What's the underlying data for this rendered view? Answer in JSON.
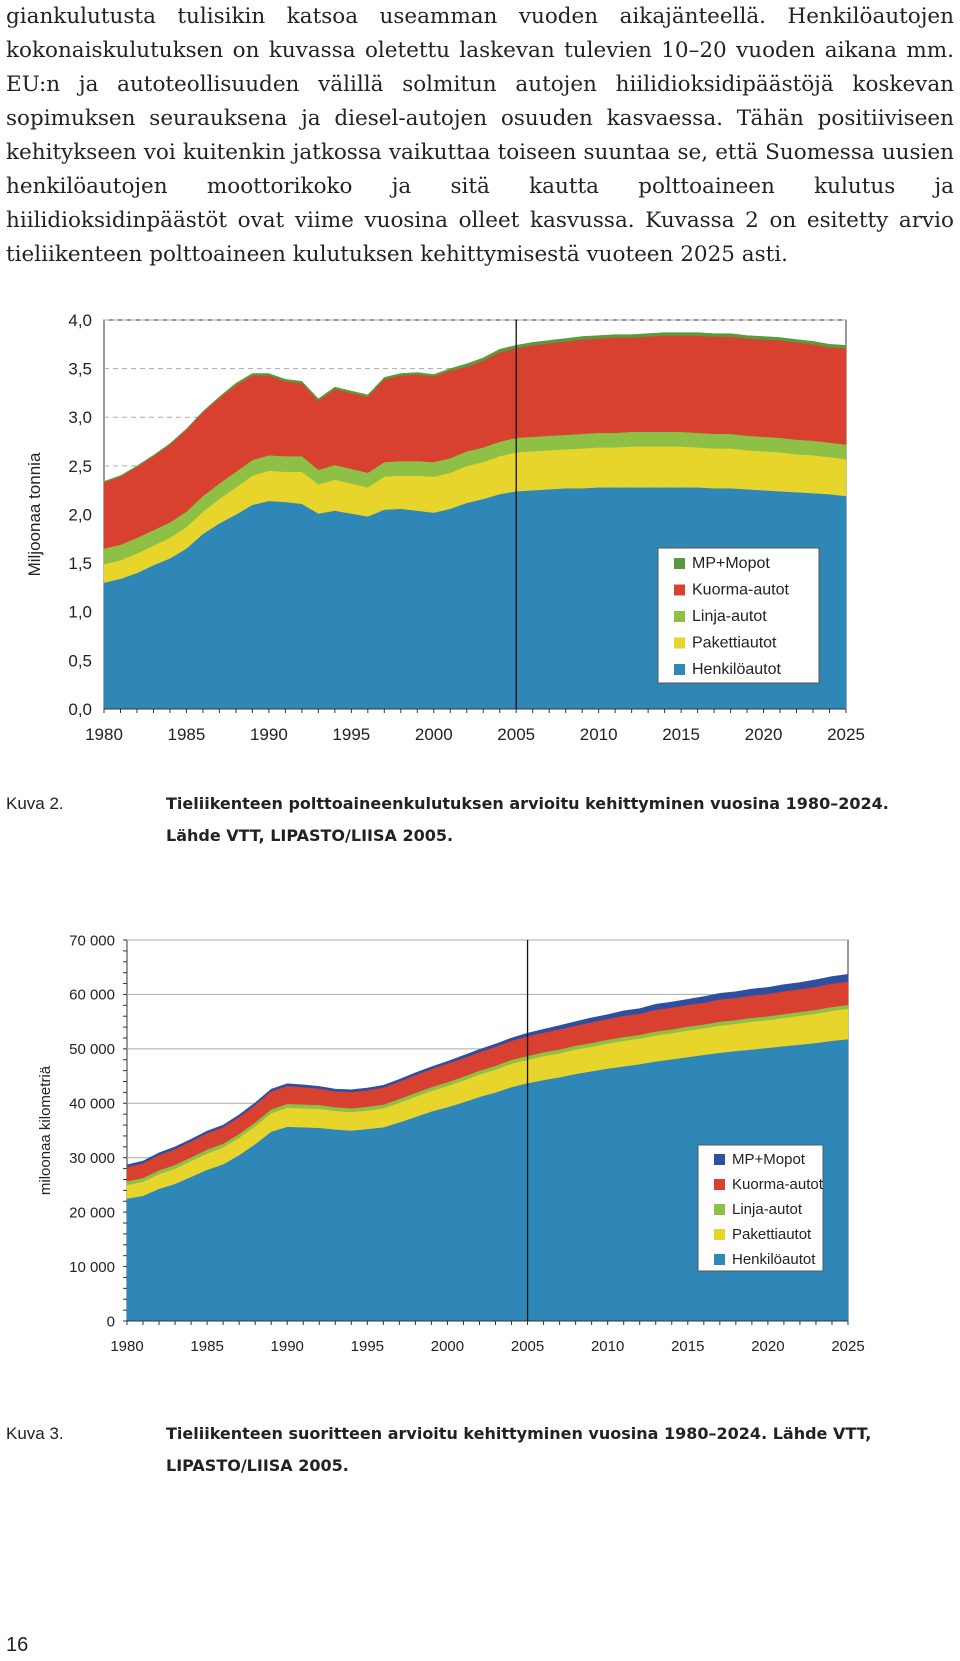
{
  "body_text": "giankulutusta tulisikin katsoa useamman vuoden aikajänteellä. Henkilöautojen kokonaiskulutuksen on kuvassa oletettu laskevan tulevien 10–20 vuoden aikana mm. EU:n ja autoteollisuuden välillä solmitun autojen hiilidioksidipäästöjä koskevan sopimuksen seurauksena ja diesel-autojen osuuden kasvaessa. Tähän positiiviseen kehitykseen voi kuitenkin jatkossa vaikuttaa toiseen suuntaa se, että Suomessa uusien henkilöautojen moottorikoko ja sitä kautta polttoaineen kulutus ja hiilidioksidinpäästöt ovat viime vuosina olleet kasvussa. Kuvassa 2 on esitetty arvio tieliikenteen polttoaineen kulutuksen kehittymisestä vuoteen 2025 asti.",
  "figure2": {
    "label": "Kuva 2.",
    "caption": "Tieliikenteen polttoaineenkulutuksen arvioitu kehittyminen vuosina 1980–2024. Lähde VTT, LIPASTO/LIISA 2005."
  },
  "figure3": {
    "label": "Kuva 3.",
    "caption": "Tieliikenteen suoritteen arvioitu kehittyminen vuosina 1980–2024. Lähde VTT, LIPASTO/LIISA 2005."
  },
  "page_number": "16",
  "colors": {
    "henkiloautot": "#2f87b8",
    "pakettiautot": "#e8d52c",
    "linja": "#8dc045",
    "kuorma": "#d8402f",
    "mp2": "#5a9a3e",
    "mp3": "#2e4fa0"
  },
  "chart_data": [
    {
      "type": "area",
      "stacked": true,
      "title": "",
      "xlabel": "",
      "ylabel": "Miljoonaa tonnia",
      "xlim": [
        1980,
        2025
      ],
      "ylim": [
        0,
        4.0
      ],
      "yticks": [
        "0,0",
        "0,5",
        "1,0",
        "1,5",
        "2,0",
        "2,5",
        "3,0",
        "3,5",
        "4,0"
      ],
      "ytick_values": [
        0,
        0.5,
        1.0,
        1.5,
        2.0,
        2.5,
        3.0,
        3.5,
        4.0
      ],
      "xticks": [
        "1980",
        "1985",
        "1990",
        "1995",
        "2000",
        "2005",
        "2010",
        "2015",
        "2020",
        "2025"
      ],
      "xtick_values": [
        1980,
        1985,
        1990,
        1995,
        2000,
        2005,
        2010,
        2015,
        2020,
        2025
      ],
      "reference_line_x": 2005,
      "legend_position": "bottom-right",
      "x": [
        1980,
        1981,
        1982,
        1983,
        1984,
        1985,
        1986,
        1987,
        1988,
        1989,
        1990,
        1991,
        1992,
        1993,
        1994,
        1995,
        1996,
        1997,
        1998,
        1999,
        2000,
        2001,
        2002,
        2003,
        2004,
        2005,
        2006,
        2007,
        2008,
        2009,
        2010,
        2011,
        2012,
        2013,
        2014,
        2015,
        2016,
        2017,
        2018,
        2019,
        2020,
        2021,
        2022,
        2023,
        2024,
        2025
      ],
      "series": [
        {
          "name": "Henkilöautot",
          "color": "#2f87b8",
          "values": [
            1.3,
            1.34,
            1.4,
            1.48,
            1.55,
            1.65,
            1.8,
            1.91,
            2.0,
            2.1,
            2.14,
            2.13,
            2.11,
            2.01,
            2.04,
            2.01,
            1.98,
            2.05,
            2.06,
            2.04,
            2.02,
            2.06,
            2.12,
            2.16,
            2.21,
            2.24,
            2.25,
            2.26,
            2.27,
            2.27,
            2.28,
            2.28,
            2.28,
            2.28,
            2.28,
            2.28,
            2.28,
            2.27,
            2.27,
            2.26,
            2.25,
            2.24,
            2.23,
            2.22,
            2.21,
            2.19
          ]
        },
        {
          "name": "Pakettiautot",
          "color": "#e8d52c",
          "values": [
            0.19,
            0.19,
            0.2,
            0.2,
            0.21,
            0.22,
            0.23,
            0.25,
            0.28,
            0.3,
            0.31,
            0.31,
            0.33,
            0.3,
            0.32,
            0.31,
            0.3,
            0.34,
            0.34,
            0.36,
            0.37,
            0.37,
            0.38,
            0.38,
            0.39,
            0.4,
            0.4,
            0.4,
            0.4,
            0.41,
            0.41,
            0.41,
            0.42,
            0.42,
            0.42,
            0.42,
            0.41,
            0.41,
            0.41,
            0.4,
            0.4,
            0.4,
            0.39,
            0.39,
            0.38,
            0.38
          ]
        },
        {
          "name": "Linja-autot",
          "color": "#8dc045",
          "values": [
            0.16,
            0.16,
            0.16,
            0.16,
            0.16,
            0.16,
            0.16,
            0.16,
            0.16,
            0.16,
            0.16,
            0.16,
            0.16,
            0.15,
            0.15,
            0.15,
            0.15,
            0.15,
            0.15,
            0.15,
            0.15,
            0.15,
            0.15,
            0.15,
            0.15,
            0.15,
            0.15,
            0.15,
            0.15,
            0.15,
            0.15,
            0.15,
            0.15,
            0.15,
            0.15,
            0.15,
            0.15,
            0.15,
            0.15,
            0.15,
            0.15,
            0.15,
            0.15,
            0.15,
            0.15,
            0.15
          ]
        },
        {
          "name": "Kuorma-autot",
          "color": "#d8402f",
          "values": [
            0.68,
            0.7,
            0.73,
            0.76,
            0.8,
            0.84,
            0.86,
            0.88,
            0.89,
            0.87,
            0.82,
            0.77,
            0.75,
            0.71,
            0.78,
            0.78,
            0.78,
            0.85,
            0.88,
            0.89,
            0.88,
            0.9,
            0.87,
            0.89,
            0.92,
            0.92,
            0.94,
            0.95,
            0.96,
            0.97,
            0.97,
            0.98,
            0.97,
            0.98,
            0.99,
            0.99,
            1.0,
            1.0,
            1.0,
            1.0,
            1.0,
            1.0,
            1.0,
            0.99,
            0.98,
            0.99
          ]
        },
        {
          "name": "MP+Mopot",
          "color": "#5a9a3e",
          "values": [
            0.01,
            0.01,
            0.01,
            0.01,
            0.01,
            0.01,
            0.01,
            0.01,
            0.02,
            0.02,
            0.02,
            0.02,
            0.02,
            0.02,
            0.02,
            0.02,
            0.02,
            0.02,
            0.02,
            0.02,
            0.02,
            0.02,
            0.03,
            0.03,
            0.03,
            0.03,
            0.03,
            0.03,
            0.03,
            0.03,
            0.03,
            0.03,
            0.03,
            0.03,
            0.03,
            0.03,
            0.03,
            0.03,
            0.03,
            0.03,
            0.03,
            0.03,
            0.03,
            0.03,
            0.03,
            0.03
          ]
        }
      ]
    },
    {
      "type": "area",
      "stacked": true,
      "title": "",
      "xlabel": "",
      "ylabel": "miloonaa kilometriä",
      "xlim": [
        1980,
        2025
      ],
      "ylim": [
        0,
        70000
      ],
      "yticks": [
        "0",
        "10 000",
        "20 000",
        "30 000",
        "40 000",
        "50 000",
        "60 000",
        "70 000"
      ],
      "ytick_values": [
        0,
        10000,
        20000,
        30000,
        40000,
        50000,
        60000,
        70000
      ],
      "xticks": [
        "1980",
        "1985",
        "1990",
        "1995",
        "2000",
        "2005",
        "2010",
        "2015",
        "2020",
        "2025"
      ],
      "xtick_values": [
        1980,
        1985,
        1990,
        1995,
        2000,
        2005,
        2010,
        2015,
        2020,
        2025
      ],
      "reference_line_x": 2005,
      "legend_position": "bottom-right",
      "x": [
        1980,
        1981,
        1982,
        1983,
        1984,
        1985,
        1986,
        1987,
        1988,
        1989,
        1990,
        1991,
        1992,
        1993,
        1994,
        1995,
        1996,
        1997,
        1998,
        1999,
        2000,
        2001,
        2002,
        2003,
        2004,
        2005,
        2006,
        2007,
        2008,
        2009,
        2010,
        2011,
        2012,
        2013,
        2014,
        2015,
        2016,
        2017,
        2018,
        2019,
        2020,
        2021,
        2022,
        2023,
        2024,
        2025
      ],
      "series": [
        {
          "name": "Henkilöautot",
          "color": "#2f87b8",
          "values": [
            22500,
            23000,
            24300,
            25200,
            26500,
            27800,
            28800,
            30500,
            32500,
            34800,
            35700,
            35600,
            35500,
            35200,
            35000,
            35300,
            35600,
            36500,
            37500,
            38500,
            39300,
            40200,
            41200,
            42000,
            43000,
            43700,
            44300,
            44800,
            45400,
            45900,
            46400,
            46800,
            47200,
            47700,
            48100,
            48500,
            48900,
            49300,
            49600,
            49900,
            50200,
            50500,
            50800,
            51100,
            51500,
            51800
          ]
        },
        {
          "name": "Pakettiautot",
          "color": "#e8d52c",
          "values": [
            2500,
            2600,
            2700,
            2800,
            2900,
            3000,
            3100,
            3200,
            3300,
            3400,
            3500,
            3500,
            3500,
            3400,
            3400,
            3400,
            3500,
            3600,
            3700,
            3800,
            3900,
            4000,
            4100,
            4200,
            4300,
            4300,
            4400,
            4400,
            4500,
            4500,
            4600,
            4700,
            4700,
            4800,
            4800,
            4900,
            4900,
            5000,
            5000,
            5100,
            5100,
            5200,
            5300,
            5400,
            5500,
            5600
          ]
        },
        {
          "name": "Linja-autot",
          "color": "#8dc045",
          "values": [
            700,
            700,
            700,
            700,
            700,
            700,
            700,
            700,
            700,
            700,
            700,
            700,
            700,
            700,
            700,
            700,
            700,
            700,
            700,
            700,
            700,
            700,
            700,
            700,
            700,
            700,
            700,
            700,
            700,
            700,
            700,
            700,
            700,
            700,
            700,
            700,
            700,
            700,
            700,
            700,
            700,
            700,
            700,
            700,
            700,
            700
          ]
        },
        {
          "name": "Kuorma-autot",
          "color": "#d8402f",
          "values": [
            2600,
            2700,
            2800,
            2900,
            2900,
            3000,
            3000,
            3100,
            3200,
            3300,
            3300,
            3200,
            3000,
            2900,
            3000,
            3000,
            3100,
            3200,
            3300,
            3300,
            3400,
            3400,
            3400,
            3500,
            3500,
            3600,
            3600,
            3700,
            3700,
            3800,
            3800,
            3900,
            3900,
            4000,
            4000,
            4000,
            4000,
            4100,
            4100,
            4100,
            4100,
            4200,
            4200,
            4200,
            4300,
            4300
          ]
        },
        {
          "name": "MP+Mopot",
          "color": "#2e4fa0",
          "values": [
            400,
            400,
            400,
            400,
            400,
            400,
            400,
            400,
            400,
            400,
            400,
            400,
            400,
            400,
            400,
            400,
            400,
            400,
            400,
            400,
            400,
            500,
            500,
            500,
            500,
            600,
            600,
            700,
            700,
            800,
            800,
            900,
            900,
            1000,
            1000,
            1000,
            1100,
            1100,
            1100,
            1200,
            1200,
            1200,
            1200,
            1300,
            1300,
            1300
          ]
        }
      ]
    }
  ]
}
